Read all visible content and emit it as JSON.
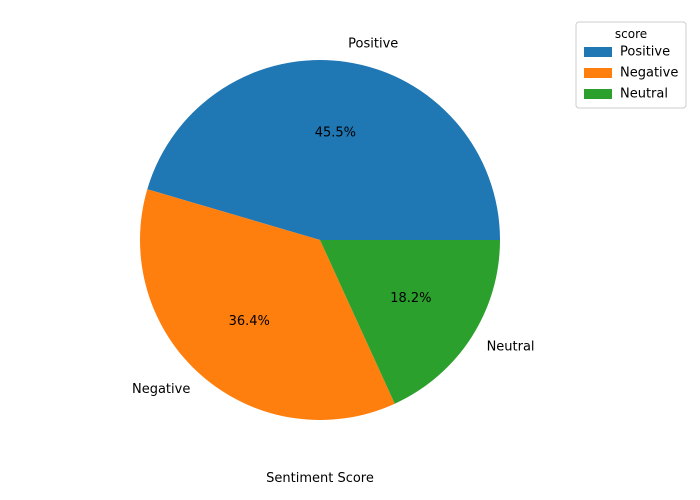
{
  "chart_data": {
    "type": "pie",
    "categories": [
      "Positive",
      "Negative",
      "Neutral"
    ],
    "values": [
      45.5,
      36.4,
      18.2
    ],
    "value_labels": [
      "45.5%",
      "36.4%",
      "18.2%"
    ],
    "colors": [
      "#1f77b4",
      "#ff7f0e",
      "#2ca02c"
    ],
    "start_angle_deg": 0,
    "direction": "counterclockwise",
    "xlabel": "Sentiment Score",
    "legend": {
      "title": "score",
      "placement": "upper-right-outside"
    }
  }
}
